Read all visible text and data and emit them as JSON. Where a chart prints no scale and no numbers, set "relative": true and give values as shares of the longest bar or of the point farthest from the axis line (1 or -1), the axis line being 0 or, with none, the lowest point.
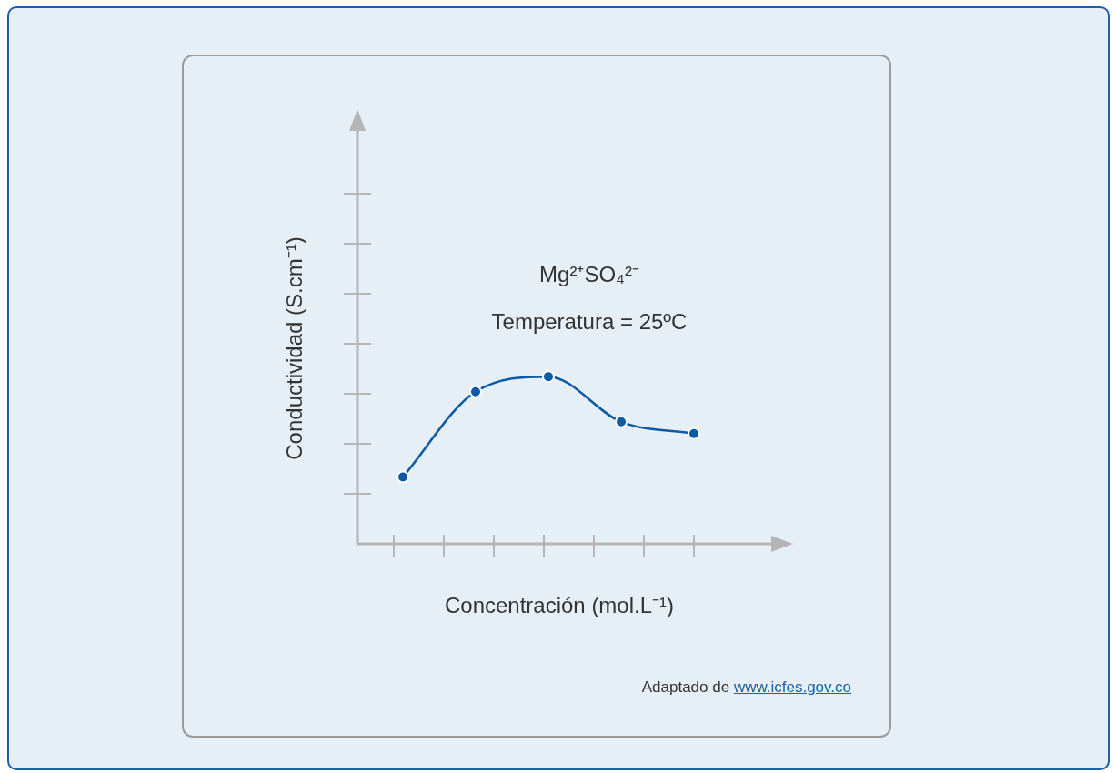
{
  "chart_data": {
    "type": "line",
    "relative": true,
    "xlabel": "Concentración (mol.L⁻¹)",
    "ylabel": "Conductividad (S.cm⁻¹)",
    "categories": [
      null,
      null,
      null,
      null,
      null
    ],
    "series": [
      {
        "color": "#0b5aa6",
        "values": [
          0.4,
          0.91,
          1,
          0.73,
          0.66
        ]
      }
    ],
    "marker": "circle",
    "line_style": "solid",
    "grid": false,
    "legend": false,
    "annotations": [
      "Mg²⁺SO₄²⁻",
      "Temperatura = 25ºC",
      "Adaptado de www.icfes.gov.co"
    ]
  }
}
